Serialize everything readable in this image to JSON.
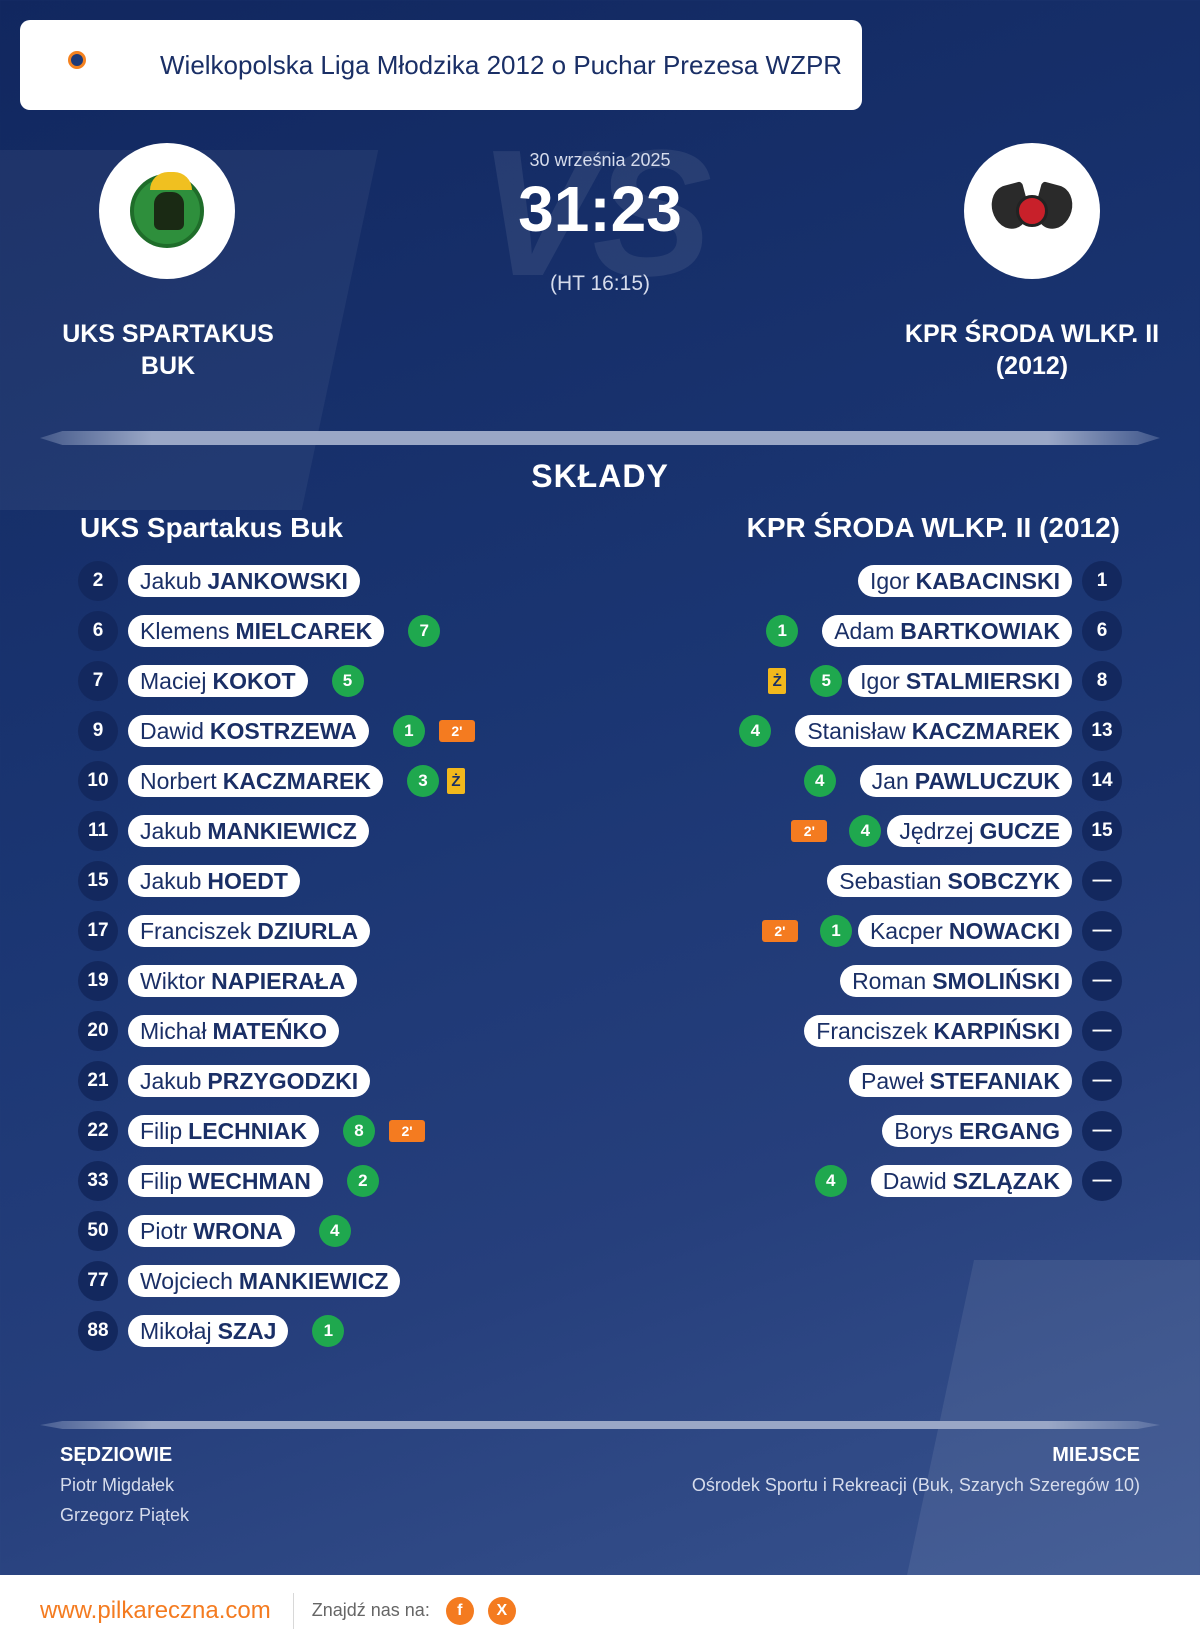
{
  "brand": {
    "logo_text": "pilkareczna",
    "logo_suffix": ".com"
  },
  "league": "Wielkopolska Liga Młodzika 2012 o Puchar Prezesa WZPR",
  "match": {
    "date": "30 września 2025",
    "score": "31:23",
    "halftime": "(HT 16:15)",
    "home_team_line1": "UKS SPARTAKUS",
    "home_team_line2": "BUK",
    "away_team_line1": "KPR ŚRODA WLKP. II",
    "away_team_line2": "(2012)"
  },
  "lineups": {
    "title": "SKŁADY",
    "home_title": "UKS Spartakus Buk",
    "away_title": "KPR ŚRODA WLKP. II (2012)",
    "home": [
      {
        "num": "2",
        "first": "Jakub",
        "last": "JANKOWSKI",
        "goals": null,
        "pen": null,
        "yel": null
      },
      {
        "num": "6",
        "first": "Klemens",
        "last": "MIELCAREK",
        "goals": "7",
        "pen": null,
        "yel": null
      },
      {
        "num": "7",
        "first": "Maciej",
        "last": "KOKOT",
        "goals": "5",
        "pen": null,
        "yel": null
      },
      {
        "num": "9",
        "first": "Dawid",
        "last": "KOSTRZEWA",
        "goals": "1",
        "pen": "2'",
        "yel": null
      },
      {
        "num": "10",
        "first": "Norbert",
        "last": "KACZMAREK",
        "goals": "3",
        "pen": null,
        "yel": "Ż"
      },
      {
        "num": "11",
        "first": "Jakub",
        "last": "MANKIEWICZ",
        "goals": null,
        "pen": null,
        "yel": null
      },
      {
        "num": "15",
        "first": "Jakub",
        "last": "HOEDT",
        "goals": null,
        "pen": null,
        "yel": null
      },
      {
        "num": "17",
        "first": "Franciszek",
        "last": "DZIURLA",
        "goals": null,
        "pen": null,
        "yel": null
      },
      {
        "num": "19",
        "first": "Wiktor",
        "last": "NAPIERAŁA",
        "goals": null,
        "pen": null,
        "yel": null
      },
      {
        "num": "20",
        "first": "Michał",
        "last": "MATEŃKO",
        "goals": null,
        "pen": null,
        "yel": null
      },
      {
        "num": "21",
        "first": "Jakub",
        "last": "PRZYGODZKI",
        "goals": null,
        "pen": null,
        "yel": null
      },
      {
        "num": "22",
        "first": "Filip",
        "last": "LECHNIAK",
        "goals": "8",
        "pen": "2'",
        "yel": null
      },
      {
        "num": "33",
        "first": "Filip",
        "last": "WECHMAN",
        "goals": "2",
        "pen": null,
        "yel": null
      },
      {
        "num": "50",
        "first": "Piotr",
        "last": "WRONA",
        "goals": "4",
        "pen": null,
        "yel": null
      },
      {
        "num": "77",
        "first": "Wojciech",
        "last": "MANKIEWICZ",
        "goals": null,
        "pen": null,
        "yel": null
      },
      {
        "num": "88",
        "first": "Mikołaj",
        "last": "SZAJ",
        "goals": "1",
        "pen": null,
        "yel": null
      }
    ],
    "away": [
      {
        "num": "1",
        "first": "Igor",
        "last": "KABACINSKI",
        "goals": null,
        "pen": null,
        "yel": null
      },
      {
        "num": "6",
        "first": "Adam",
        "last": "BARTKOWIAK",
        "goals": "1",
        "pen": null,
        "yel": null
      },
      {
        "num": "8",
        "first": "Igor",
        "last": "STALMIERSKI",
        "goals": "5",
        "pen": null,
        "yel": "Ż"
      },
      {
        "num": "13",
        "first": "Stanisław",
        "last": "KACZMAREK",
        "goals": "4",
        "pen": null,
        "yel": null
      },
      {
        "num": "14",
        "first": "Jan",
        "last": "PAWLUCZUK",
        "goals": "4",
        "pen": null,
        "yel": null
      },
      {
        "num": "15",
        "first": "Jędrzej",
        "last": "GUCZE",
        "goals": "4",
        "pen": "2'",
        "yel": null
      },
      {
        "num": "—",
        "first": "Sebastian",
        "last": "SOBCZYK",
        "goals": null,
        "pen": null,
        "yel": null
      },
      {
        "num": "—",
        "first": "Kacper",
        "last": "NOWACKI",
        "goals": "1",
        "pen": "2'",
        "yel": null
      },
      {
        "num": "—",
        "first": "Roman",
        "last": "SMOLIŃSKI",
        "goals": null,
        "pen": null,
        "yel": null
      },
      {
        "num": "—",
        "first": "Franciszek",
        "last": "KARPIŃSKI",
        "goals": null,
        "pen": null,
        "yel": null
      },
      {
        "num": "—",
        "first": "Paweł",
        "last": "STEFANIAK",
        "goals": null,
        "pen": null,
        "yel": null
      },
      {
        "num": "—",
        "first": "Borys",
        "last": "ERGANG",
        "goals": null,
        "pen": null,
        "yel": null
      },
      {
        "num": "—",
        "first": "Dawid",
        "last": "SZLĄZAK",
        "goals": "4",
        "pen": null,
        "yel": null
      }
    ]
  },
  "officials": {
    "referees_title": "SĘDZIOWIE",
    "referees": [
      "Piotr Migdałek",
      "Grzegorz Piątek"
    ],
    "venue_title": "MIEJSCE",
    "venue": "Ośrodek Sportu i Rekreacji (Buk, Szarych Szeregów 10)"
  },
  "footer": {
    "site": "www.pilkareczna.com",
    "find_us": "Znajdź nas na:",
    "social": [
      {
        "icon": "facebook-icon",
        "glyph": "f"
      },
      {
        "icon": "x-icon",
        "glyph": "X"
      }
    ]
  },
  "colors": {
    "background": "#1b3673",
    "goals_badge": "#1fa84e",
    "penalty_badge": "#f47b20",
    "yellow_card": "#f2b81c",
    "accent": "#f47b20"
  }
}
